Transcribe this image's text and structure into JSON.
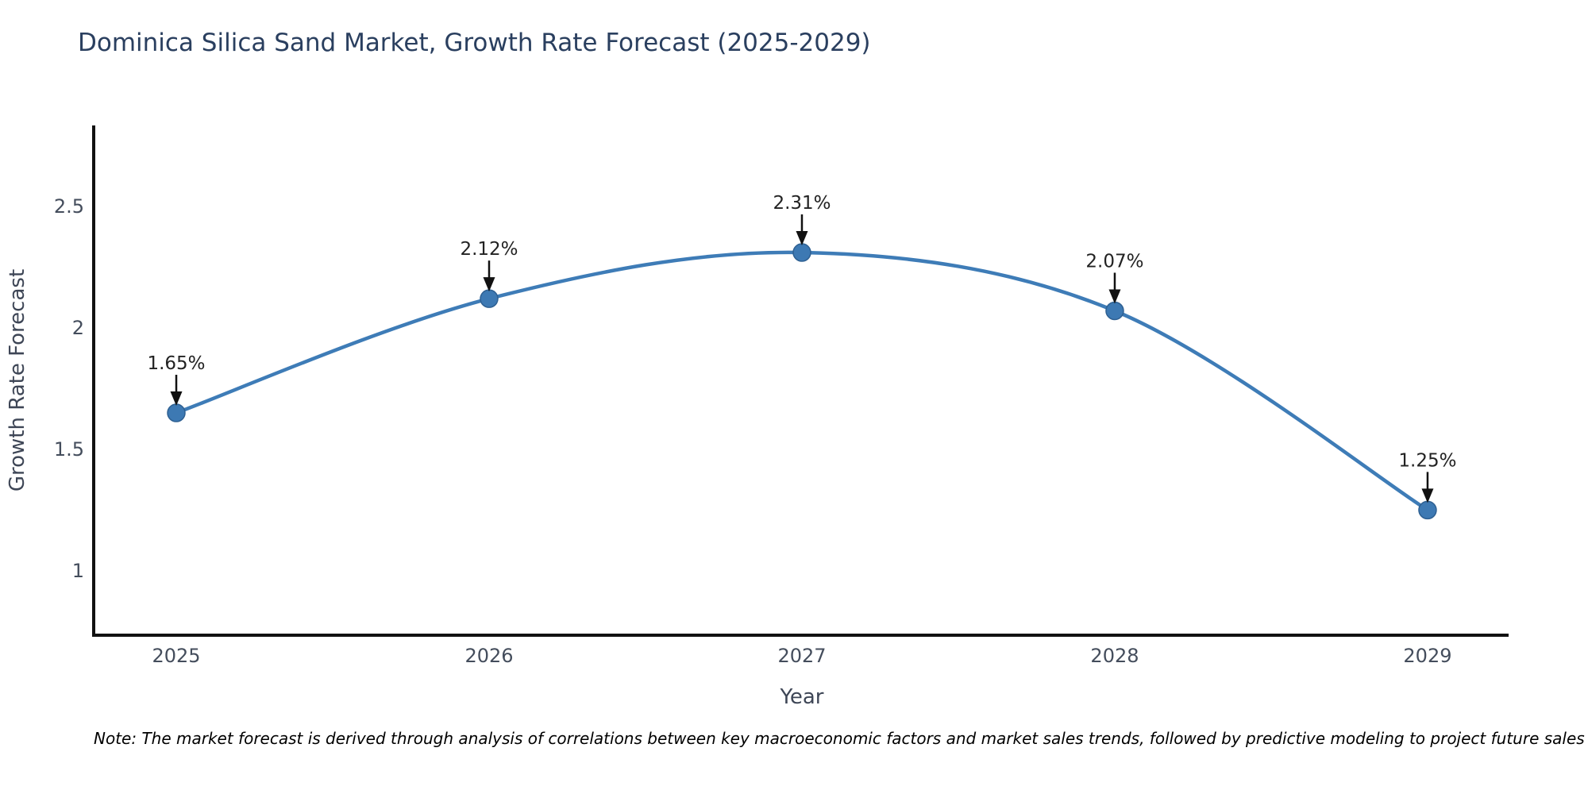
{
  "title": "Dominica Silica Sand Market, Growth Rate Forecast (2025-2029)",
  "note": "Note: The market forecast is derived through analysis of correlations between key macroeconomic factors and market sales trends, followed by predictive modeling to project future sales",
  "colors": {
    "line": "#3e7cb7",
    "marker_fill": "#3d79b3",
    "marker_edge": "#2e6092",
    "axis": "#111111",
    "tick_label": "#444d5c",
    "axis_title": "#3e4656",
    "annotation_text": "#222222",
    "arrow": "#111111",
    "title_text": "#2a3f5f",
    "background": "#ffffff"
  },
  "chart_data": {
    "type": "line",
    "title": "Dominica Silica Sand Market, Growth Rate Forecast (2025-2029)",
    "categories": [
      "2025",
      "2026",
      "2027",
      "2028",
      "2029"
    ],
    "x": [
      2025,
      2026,
      2027,
      2028,
      2029
    ],
    "values": [
      1.65,
      2.12,
      2.31,
      2.07,
      1.25
    ],
    "point_labels": [
      "1.65%",
      "2.12%",
      "2.31%",
      "2.07%",
      "1.25%"
    ],
    "xlabel": "Year",
    "ylabel": "Growth Rate Forecast",
    "yticks": [
      1,
      1.5,
      2,
      2.5
    ],
    "ytick_labels": [
      "1",
      "1.5",
      "2",
      "2.5"
    ],
    "xlim": [
      2024.736,
      2029.259
    ],
    "ylim": [
      0.735,
      2.833
    ],
    "grid": false,
    "legend": "none",
    "line_shape": "spline",
    "marker": "circle",
    "annotations": "arrow-down-to-point"
  }
}
